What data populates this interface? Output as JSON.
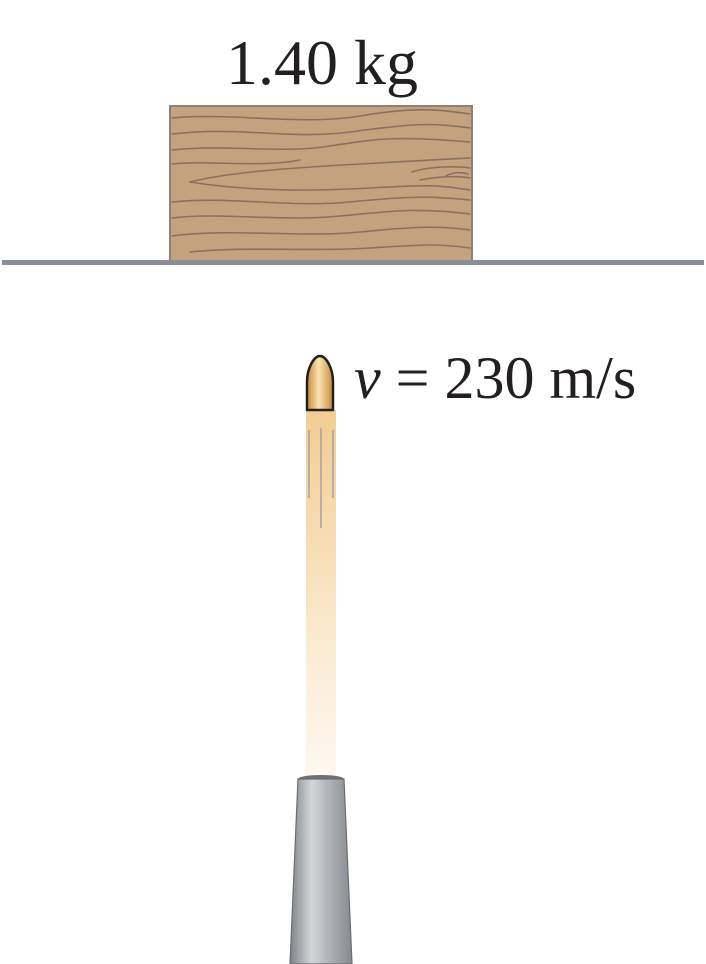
{
  "block": {
    "mass_label": "1.40 kg",
    "color": "#c4a27d",
    "grain_color": "#8a7060"
  },
  "bullet": {
    "velocity_symbol": "v",
    "velocity_equals": " = ",
    "velocity_value": "230 m/s",
    "tip_color": "#e9b770"
  },
  "surface": {
    "color": "#8a8f96"
  },
  "gun": {
    "color": "#a9adb1"
  }
}
